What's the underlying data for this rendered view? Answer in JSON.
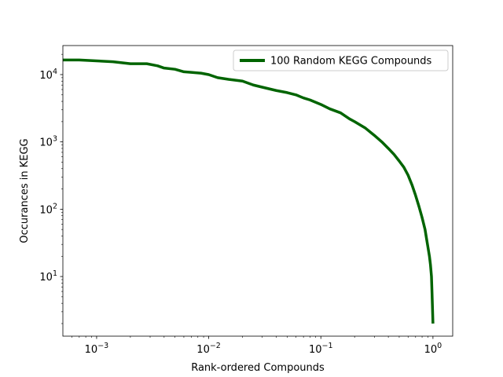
{
  "chart_data": {
    "type": "line",
    "title": "",
    "xlabel": "Rank-ordered Compounds",
    "ylabel": "Occurances in KEGG",
    "x_scale": "log",
    "y_scale": "log",
    "xlim": [
      0.0005,
      1.5
    ],
    "ylim": [
      1.3,
      27000
    ],
    "x_ticks": [
      {
        "value": 0.001,
        "base": "10",
        "exp": "−3"
      },
      {
        "value": 0.01,
        "base": "10",
        "exp": "−2"
      },
      {
        "value": 0.1,
        "base": "10",
        "exp": "−1"
      },
      {
        "value": 1,
        "base": "10",
        "exp": "0"
      }
    ],
    "y_ticks": [
      {
        "value": 10,
        "base": "10",
        "exp": "1"
      },
      {
        "value": 100,
        "base": "10",
        "exp": "2"
      },
      {
        "value": 1000,
        "base": "10",
        "exp": "3"
      },
      {
        "value": 10000,
        "base": "10",
        "exp": "4"
      }
    ],
    "grid": false,
    "legend_position": "top-right",
    "series": [
      {
        "name": "100 Random KEGG Compounds",
        "color": "#006400",
        "x": [
          0.0005,
          0.0007,
          0.001,
          0.0014,
          0.002,
          0.0028,
          0.0035,
          0.004,
          0.005,
          0.006,
          0.007,
          0.0085,
          0.01,
          0.012,
          0.015,
          0.02,
          0.025,
          0.03,
          0.04,
          0.05,
          0.06,
          0.07,
          0.08,
          0.1,
          0.12,
          0.15,
          0.18,
          0.2,
          0.25,
          0.3,
          0.35,
          0.4,
          0.45,
          0.5,
          0.55,
          0.6,
          0.65,
          0.7,
          0.75,
          0.8,
          0.85,
          0.88,
          0.9,
          0.93,
          0.95,
          0.97,
          0.98,
          0.99,
          1.0
        ],
        "y": [
          16500,
          16500,
          16000,
          15500,
          14500,
          14500,
          13500,
          12500,
          12000,
          11000,
          10800,
          10500,
          10000,
          9000,
          8500,
          8000,
          7000,
          6500,
          5800,
          5400,
          5000,
          4500,
          4200,
          3600,
          3100,
          2700,
          2200,
          2000,
          1600,
          1250,
          1000,
          800,
          650,
          520,
          420,
          320,
          230,
          160,
          110,
          75,
          50,
          35,
          28,
          20,
          15,
          10,
          6,
          3.5,
          2
        ]
      }
    ]
  }
}
